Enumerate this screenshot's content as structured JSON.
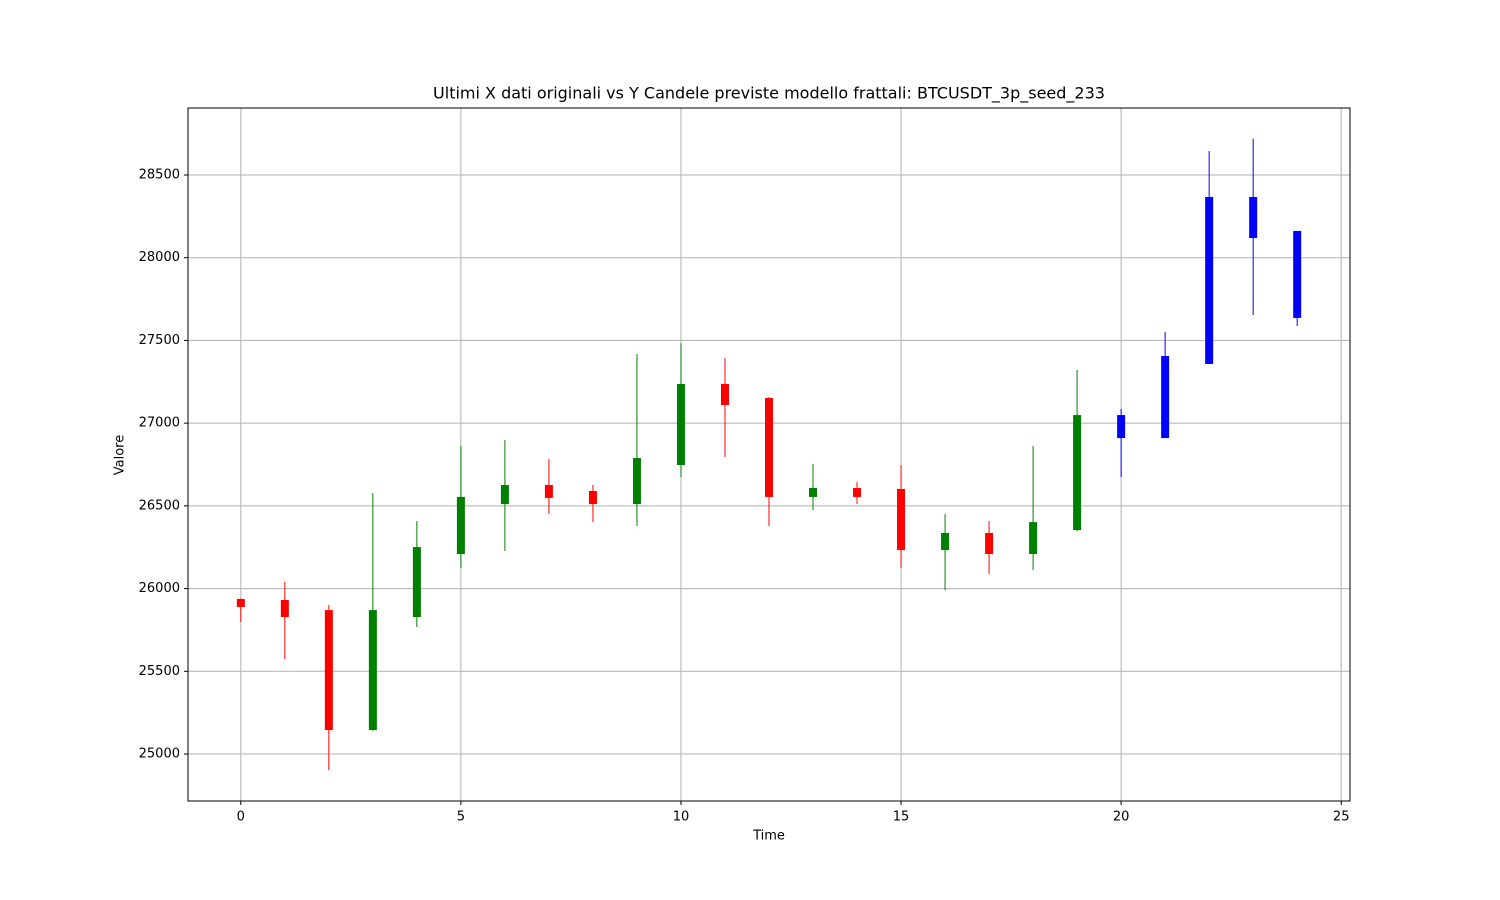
{
  "chart_data": {
    "type": "candlestick",
    "title": "Ultimi X dati originali vs Y Candele previste modello frattali: BTCUSDT_3p_seed_233",
    "x_label": "Time",
    "y_label": "Valore",
    "series": [
      {
        "up_color": "#008000",
        "down_color": "#ff0000",
        "x": [
          0,
          1,
          2,
          3,
          4,
          5,
          6,
          7,
          8,
          9,
          10,
          11,
          12,
          13,
          14,
          15,
          16,
          17,
          18,
          19
        ],
        "open": [
          25937,
          25931,
          25870,
          25145,
          25828,
          26209,
          26511,
          26626,
          26590,
          26511,
          26747,
          27237,
          27152,
          26554,
          26608,
          26602,
          26233,
          26336,
          26209,
          26354
        ],
        "high": [
          25940,
          26040,
          25900,
          26578,
          26408,
          26862,
          26898,
          26783,
          26626,
          27418,
          27484,
          27394,
          27158,
          26753,
          26644,
          26747,
          26451,
          26408,
          26862,
          27321
        ],
        "low": [
          25798,
          25574,
          24903,
          25139,
          25768,
          26124,
          26227,
          26451,
          26402,
          26378,
          26674,
          26795,
          26378,
          26475,
          26511,
          26124,
          25991,
          26088,
          26112,
          26348
        ],
        "close": [
          25889,
          25828,
          25145,
          25870,
          26251,
          26554,
          26626,
          26548,
          26511,
          26789,
          27237,
          27110,
          26554,
          26608,
          26554,
          26233,
          26336,
          26209,
          26402,
          27049
        ]
      },
      {
        "color": "#0000ff",
        "x": [
          20,
          21,
          22,
          23,
          24
        ],
        "open": [
          26910,
          26910,
          27358,
          28119,
          27636
        ],
        "high": [
          27086,
          27551,
          28645,
          28718,
          28162
        ],
        "low": [
          26674,
          26910,
          27358,
          27654,
          27587
        ],
        "close": [
          27049,
          27406,
          28367,
          28367,
          28162
        ]
      }
    ],
    "xlim": [
      -1.2,
      25.2
    ],
    "xticks": [
      0,
      5,
      10,
      15,
      20,
      25
    ],
    "ylim": [
      24716,
      28905
    ],
    "yticks": [
      25000,
      25500,
      26000,
      26500,
      27000,
      27500,
      28000,
      28500
    ],
    "grid": true
  }
}
